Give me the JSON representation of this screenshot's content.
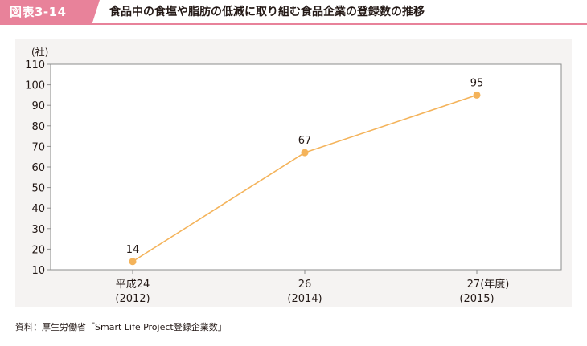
{
  "header": {
    "badge": "図表3-14",
    "title": "食品中の食塩や脂肪の低減に取り組む食品企業の登録数の推移"
  },
  "source": "資料：厚生労働省「Smart Life Project登録企業数」",
  "colors": {
    "accent": "#e8829a",
    "series": "#f4b35a",
    "panel": "#f5f3f2"
  },
  "chart_data": {
    "type": "line",
    "ylabel": "(社)",
    "ylim": [
      10,
      110
    ],
    "yticks": [
      10,
      20,
      30,
      40,
      50,
      60,
      70,
      80,
      90,
      100,
      110
    ],
    "categories": [
      {
        "line1": "平成24",
        "line2": "(2012)"
      },
      {
        "line1": "26",
        "line2": "(2014)"
      },
      {
        "line1": "27",
        "line2": "(2015)"
      }
    ],
    "x_unit": "(年度)",
    "values": [
      14,
      67,
      95
    ],
    "data_labels": [
      "14",
      "67",
      "95"
    ],
    "grid": false
  }
}
